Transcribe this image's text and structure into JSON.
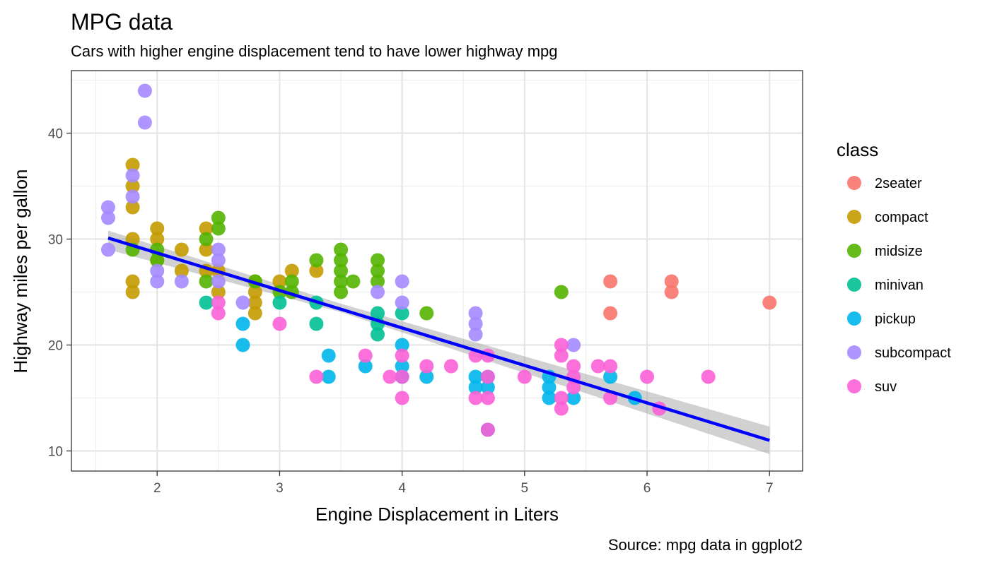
{
  "chart_data": {
    "type": "scatter",
    "title": "MPG data",
    "subtitle": "Cars with higher engine displacement tend to have lower highway mpg",
    "caption": "Source: mpg data in ggplot2",
    "xlabel": "Engine Displacement in Liters",
    "ylabel": "Highway miles per gallon",
    "xlim": [
      1.3,
      7.27
    ],
    "ylim": [
      8.1,
      45.9
    ],
    "x_ticks": [
      2,
      3,
      4,
      5,
      6,
      7
    ],
    "y_ticks": [
      10,
      20,
      30,
      40
    ],
    "grid": true,
    "legend": {
      "title": "class",
      "position": "right"
    },
    "smooth": {
      "method": "lm",
      "color": "#0000FF",
      "band_color": "#999999",
      "points": [
        {
          "x": 1.6,
          "y": 30.1,
          "lo": 29.0,
          "hi": 30.8
        },
        {
          "x": 3.5,
          "y": 23.5,
          "lo": 23.1,
          "hi": 23.9
        },
        {
          "x": 7.0,
          "y": 11.0,
          "lo": 9.7,
          "hi": 12.3
        }
      ]
    },
    "series": [
      {
        "name": "2seater",
        "color": "#F8766D",
        "points": [
          [
            5.7,
            26
          ],
          [
            5.7,
            23
          ],
          [
            6.2,
            26
          ],
          [
            6.2,
            25
          ],
          [
            7.0,
            24
          ]
        ]
      },
      {
        "name": "compact",
        "color": "#C49A00",
        "points": [
          [
            1.8,
            37
          ],
          [
            1.8,
            35
          ],
          [
            1.8,
            33
          ],
          [
            1.8,
            30
          ],
          [
            1.8,
            26
          ],
          [
            1.8,
            25
          ],
          [
            2.0,
            31
          ],
          [
            2.0,
            30
          ],
          [
            2.0,
            28
          ],
          [
            2.2,
            29
          ],
          [
            2.2,
            27
          ],
          [
            2.4,
            31
          ],
          [
            2.4,
            29
          ],
          [
            2.4,
            27
          ],
          [
            2.5,
            27
          ],
          [
            2.5,
            25
          ],
          [
            2.8,
            26
          ],
          [
            2.8,
            25
          ],
          [
            2.8,
            24
          ],
          [
            2.8,
            23
          ],
          [
            3.0,
            26
          ],
          [
            3.1,
            27
          ],
          [
            3.3,
            27
          ]
        ]
      },
      {
        "name": "midsize",
        "color": "#53B400",
        "points": [
          [
            1.8,
            29
          ],
          [
            2.0,
            29
          ],
          [
            2.0,
            28
          ],
          [
            2.4,
            30
          ],
          [
            2.4,
            26
          ],
          [
            2.5,
            32
          ],
          [
            2.5,
            31
          ],
          [
            2.8,
            26
          ],
          [
            3.0,
            25
          ],
          [
            3.1,
            26
          ],
          [
            3.1,
            25
          ],
          [
            3.3,
            28
          ],
          [
            3.5,
            29
          ],
          [
            3.5,
            28
          ],
          [
            3.5,
            27
          ],
          [
            3.5,
            26
          ],
          [
            3.5,
            25
          ],
          [
            3.6,
            26
          ],
          [
            3.8,
            28
          ],
          [
            3.8,
            27
          ],
          [
            3.8,
            26
          ],
          [
            4.2,
            23
          ],
          [
            5.3,
            25
          ]
        ]
      },
      {
        "name": "minivan",
        "color": "#00C094",
        "points": [
          [
            2.4,
            24
          ],
          [
            3.0,
            24
          ],
          [
            3.3,
            24
          ],
          [
            3.3,
            22
          ],
          [
            3.8,
            23
          ],
          [
            3.8,
            22
          ],
          [
            3.8,
            21
          ],
          [
            4.0,
            23
          ]
        ]
      },
      {
        "name": "pickup",
        "color": "#00B6EB",
        "points": [
          [
            2.7,
            22
          ],
          [
            2.7,
            20
          ],
          [
            3.4,
            19
          ],
          [
            3.4,
            17
          ],
          [
            3.7,
            18
          ],
          [
            4.0,
            20
          ],
          [
            4.0,
            18
          ],
          [
            4.0,
            17
          ],
          [
            4.2,
            17
          ],
          [
            4.6,
            17
          ],
          [
            4.6,
            16
          ],
          [
            4.7,
            17
          ],
          [
            4.7,
            16
          ],
          [
            4.7,
            12
          ],
          [
            5.2,
            17
          ],
          [
            5.2,
            16
          ],
          [
            5.2,
            15
          ],
          [
            5.4,
            15
          ],
          [
            5.7,
            17
          ],
          [
            5.9,
            15
          ]
        ]
      },
      {
        "name": "subcompact",
        "color": "#A58AFF",
        "points": [
          [
            1.6,
            33
          ],
          [
            1.6,
            32
          ],
          [
            1.6,
            29
          ],
          [
            1.8,
            36
          ],
          [
            1.8,
            34
          ],
          [
            1.9,
            44
          ],
          [
            1.9,
            41
          ],
          [
            2.0,
            27
          ],
          [
            2.0,
            26
          ],
          [
            2.2,
            26
          ],
          [
            2.5,
            29
          ],
          [
            2.5,
            28
          ],
          [
            2.5,
            26
          ],
          [
            2.7,
            24
          ],
          [
            3.8,
            25
          ],
          [
            4.0,
            26
          ],
          [
            4.0,
            24
          ],
          [
            4.6,
            23
          ],
          [
            4.6,
            22
          ],
          [
            4.6,
            21
          ],
          [
            5.4,
            20
          ]
        ]
      },
      {
        "name": "suv",
        "color": "#FB61D7",
        "points": [
          [
            2.5,
            24
          ],
          [
            2.5,
            23
          ],
          [
            3.0,
            22
          ],
          [
            3.3,
            17
          ],
          [
            3.7,
            19
          ],
          [
            3.9,
            17
          ],
          [
            4.0,
            19
          ],
          [
            4.0,
            17
          ],
          [
            4.0,
            15
          ],
          [
            4.2,
            18
          ],
          [
            4.4,
            18
          ],
          [
            4.6,
            19
          ],
          [
            4.6,
            15
          ],
          [
            4.7,
            19
          ],
          [
            4.7,
            17
          ],
          [
            4.7,
            15
          ],
          [
            4.7,
            12
          ],
          [
            5.0,
            17
          ],
          [
            5.3,
            20
          ],
          [
            5.3,
            19
          ],
          [
            5.3,
            15
          ],
          [
            5.3,
            14
          ],
          [
            5.4,
            18
          ],
          [
            5.4,
            17
          ],
          [
            5.4,
            16
          ],
          [
            5.6,
            18
          ],
          [
            5.7,
            18
          ],
          [
            5.7,
            15
          ],
          [
            6.0,
            17
          ],
          [
            6.1,
            14
          ],
          [
            6.5,
            17
          ]
        ]
      }
    ]
  }
}
